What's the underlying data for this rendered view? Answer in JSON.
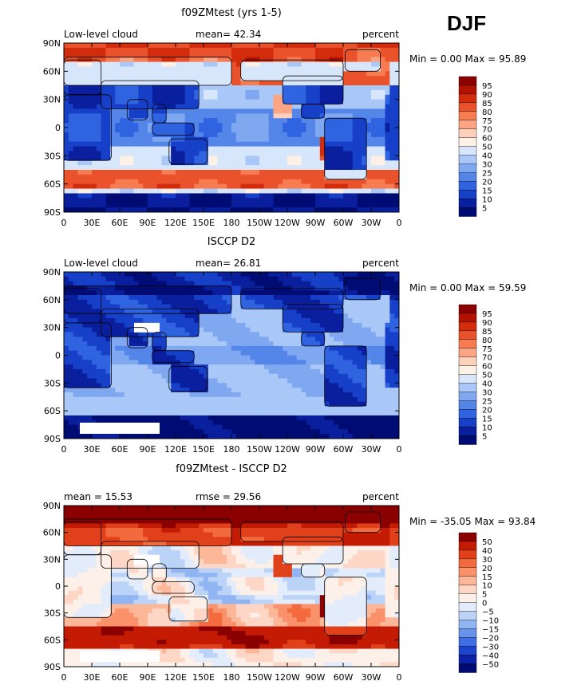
{
  "season": "DJF",
  "chart_data": [
    {
      "type": "heatmap",
      "title": "f09ZMtest (yrs 1-5)",
      "left_label": "Low-level cloud",
      "stat_text": "mean=  42.34",
      "units": "percent",
      "minmax_text": "Min =   0.00 Max =  95.89",
      "x_ticks": [
        "0",
        "30E",
        "60E",
        "90E",
        "120E",
        "150E",
        "180",
        "150W",
        "120W",
        "90W",
        "60W",
        "30W",
        "0"
      ],
      "y_ticks": [
        "90N",
        "60N",
        "30N",
        "0",
        "30S",
        "60S",
        "90S"
      ],
      "colorbar": {
        "labels": [
          "95",
          "90",
          "85",
          "80",
          "75",
          "70",
          "60",
          "50",
          "40",
          "30",
          "25",
          "20",
          "15",
          "10",
          "5"
        ],
        "colors": [
          "#8b0000",
          "#b31200",
          "#d32c0d",
          "#e9522a",
          "#f77c52",
          "#fca585",
          "#fdd0bc",
          "#fdf0e4",
          "#d7e6fb",
          "#a9c7f7",
          "#7fa8f0",
          "#5486ea",
          "#2f63df",
          "#1740c9",
          "#0a1f9d",
          "#000c74"
        ]
      },
      "field": "model_low_cloud"
    },
    {
      "type": "heatmap",
      "title": "ISCCP D2",
      "left_label": "Low-level cloud",
      "stat_text": "mean=  26.81",
      "units": "percent",
      "minmax_text": "Min =   0.00 Max =  59.59",
      "x_ticks": [
        "0",
        "30E",
        "60E",
        "90E",
        "120E",
        "150E",
        "180",
        "150W",
        "120W",
        "90W",
        "60W",
        "30W",
        "0"
      ],
      "y_ticks": [
        "90N",
        "60N",
        "30N",
        "0",
        "30S",
        "60S",
        "90S"
      ],
      "colorbar": {
        "labels": [
          "95",
          "90",
          "85",
          "80",
          "75",
          "70",
          "60",
          "50",
          "40",
          "30",
          "25",
          "20",
          "15",
          "10",
          "5"
        ],
        "colors": [
          "#8b0000",
          "#b31200",
          "#d32c0d",
          "#e9522a",
          "#f77c52",
          "#fca585",
          "#fdd0bc",
          "#fdf0e4",
          "#d7e6fb",
          "#a9c7f7",
          "#7fa8f0",
          "#5486ea",
          "#2f63df",
          "#1740c9",
          "#0a1f9d",
          "#000c74"
        ]
      },
      "field": "obs_low_cloud"
    },
    {
      "type": "heatmap",
      "title": "f09ZMtest - ISCCP D2",
      "left_label": "mean =  15.53",
      "stat_text": "rmse =  29.56",
      "units": "percent",
      "minmax_text": "Min = -35.05 Max =  93.84",
      "x_ticks": [
        "0",
        "30E",
        "60E",
        "90E",
        "120E",
        "150E",
        "180",
        "150W",
        "120W",
        "90W",
        "60W",
        "30W",
        "0"
      ],
      "y_ticks": [
        "90N",
        "60N",
        "30N",
        "0",
        "30S",
        "60S",
        "90S"
      ],
      "colorbar": {
        "labels": [
          "50",
          "40",
          "30",
          "20",
          "15",
          "10",
          "5",
          "0",
          "−5",
          "−10",
          "−15",
          "−20",
          "−30",
          "−40",
          "−50"
        ],
        "colors": [
          "#8b0000",
          "#c41b04",
          "#e0411b",
          "#f36a3f",
          "#f9916a",
          "#fcb698",
          "#fdd6c6",
          "#fdf0e8",
          "#e3ecfb",
          "#bcd3f8",
          "#91b4f2",
          "#6892ec",
          "#3f6ee3",
          "#1c45cf",
          "#0b22a6",
          "#000c74"
        ]
      },
      "field": "difference"
    }
  ]
}
